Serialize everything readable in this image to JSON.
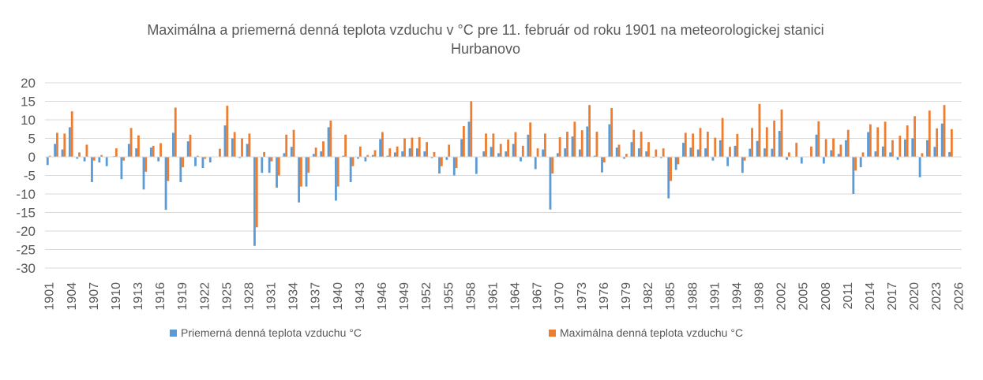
{
  "chart_data": {
    "type": "bar",
    "title": "Maximálna a priemerná denná teplota vzduchu v °C pre 11. február od roku 1901 na meteorologickej stanici Hurbanovo",
    "categories": [
      "1901",
      null,
      null,
      "1904",
      null,
      null,
      "1907",
      null,
      null,
      "1910",
      null,
      null,
      "1913",
      null,
      null,
      "1916",
      null,
      null,
      "1919",
      null,
      null,
      "1922",
      null,
      null,
      "1925",
      null,
      null,
      "1928",
      null,
      null,
      "1931",
      null,
      null,
      "1934",
      null,
      null,
      "1937",
      null,
      null,
      "1940",
      null,
      null,
      "1943",
      null,
      null,
      "1946",
      null,
      null,
      "1949",
      null,
      null,
      "1952",
      null,
      null,
      "1955",
      null,
      null,
      "1958",
      null,
      null,
      "1961",
      null,
      null,
      "1964",
      null,
      null,
      "1967",
      null,
      null,
      "1970",
      null,
      null,
      "1973",
      null,
      null,
      "1976",
      null,
      null,
      "1979",
      null,
      null,
      "1982",
      null,
      null,
      "1985",
      null,
      null,
      "1988",
      null,
      null,
      "1991",
      null,
      null,
      "1994",
      null,
      null,
      "1998",
      null,
      null,
      "2002",
      null,
      null,
      "2005",
      null,
      null,
      "2008",
      null,
      null,
      "2011",
      null,
      null,
      "2014",
      null,
      null,
      "2017",
      null,
      null,
      "2020",
      null,
      null,
      "2023",
      null,
      null,
      "2026"
    ],
    "series": [
      {
        "name": "Priemerná denná teplota vzduchu °C",
        "color": "#5b9bd5",
        "values": [
          -2.2,
          3.5,
          2,
          8,
          -0.5,
          -1.2,
          -6.8,
          -1.5,
          -2.5,
          0.2,
          -6,
          3.5,
          2.3,
          -8.8,
          2.5,
          -1.2,
          -14.3,
          6.5,
          -6.8,
          4.2,
          -2.5,
          -3,
          -1.5,
          0,
          8.5,
          5,
          -0.3,
          3.5,
          -24,
          -4.3,
          -4.3,
          -8.3,
          1,
          2.7,
          -12.3,
          -8,
          0.8,
          1.5,
          8,
          -11.8,
          0.3,
          -6.8,
          -0.5,
          -1.2,
          0.5,
          4.8,
          0.3,
          1.2,
          1.5,
          2.3,
          2.3,
          1.5,
          -0.3,
          -4.5,
          -0.8,
          -5,
          4.8,
          9.5,
          -4.6,
          1.5,
          2.7,
          1,
          1.5,
          3.5,
          -1.2,
          6,
          -3.3,
          2,
          -14.2,
          1,
          2.3,
          5.5,
          2,
          8.2,
          0.3,
          -4.2,
          8.8,
          2.5,
          -0.5,
          4,
          2.3,
          1.5,
          -0.2,
          -0.3,
          -11.2,
          -3.5,
          3.8,
          2.5,
          2,
          2.3,
          -1,
          4.5,
          -2.5,
          3,
          -4.3,
          2.2,
          4.3,
          2.3,
          2.2,
          7,
          -0.8,
          0,
          -1.8,
          0,
          6,
          -1.8,
          1.8,
          0.8,
          4.5,
          -10,
          -2.8,
          6.7,
          1.5,
          2.8,
          1.2,
          -0.8,
          4.7,
          5,
          -5.5,
          4.5,
          2.7,
          9,
          1.3,
          null
        ]
      },
      {
        "name": "Maximálna denná teplota vzduchu °C",
        "color": "#ed7d31",
        "values": [
          0.3,
          6.5,
          6.3,
          12.3,
          1.2,
          3.3,
          -1,
          0.5,
          0,
          2.3,
          -1,
          7.8,
          5.8,
          -4,
          3,
          3.7,
          -6.5,
          13.3,
          -2.8,
          6,
          0.3,
          -0.5,
          0,
          2.2,
          13.8,
          6.7,
          5,
          6.3,
          -19,
          1.3,
          -1.2,
          -5,
          6,
          7.3,
          -8,
          -4.3,
          2.5,
          4.2,
          9.8,
          -8,
          6,
          -2.5,
          2.8,
          0.5,
          1.8,
          6.7,
          2.3,
          2.8,
          5,
          5.2,
          5.3,
          4,
          1.3,
          -2.5,
          3.3,
          -3,
          8.3,
          15,
          0,
          6.3,
          6.3,
          3.5,
          4.7,
          6.7,
          3,
          9.3,
          2.3,
          6.3,
          -4.5,
          5.3,
          6.8,
          9.5,
          7.2,
          14,
          6.8,
          -1.5,
          13.2,
          3.3,
          0.8,
          7.3,
          6.8,
          4,
          2,
          2.3,
          -6.5,
          -2,
          6.5,
          6.3,
          7.8,
          6.8,
          5.2,
          10.5,
          2.7,
          6.2,
          -1,
          7.8,
          14.3,
          8,
          9.8,
          12.8,
          1.2,
          3.8,
          0,
          2.8,
          9.6,
          4.8,
          5,
          3.3,
          7.3,
          -3.7,
          1.2,
          8.8,
          8,
          9.5,
          4.5,
          5.7,
          8.5,
          11,
          1,
          12.5,
          7.7,
          14,
          7.5,
          null
        ]
      }
    ],
    "ylim": [
      -30,
      20
    ],
    "yticks": [
      -30,
      -25,
      -20,
      -15,
      -10,
      -5,
      0,
      5,
      10,
      15,
      20
    ],
    "grid": true,
    "legend": "bottom"
  }
}
